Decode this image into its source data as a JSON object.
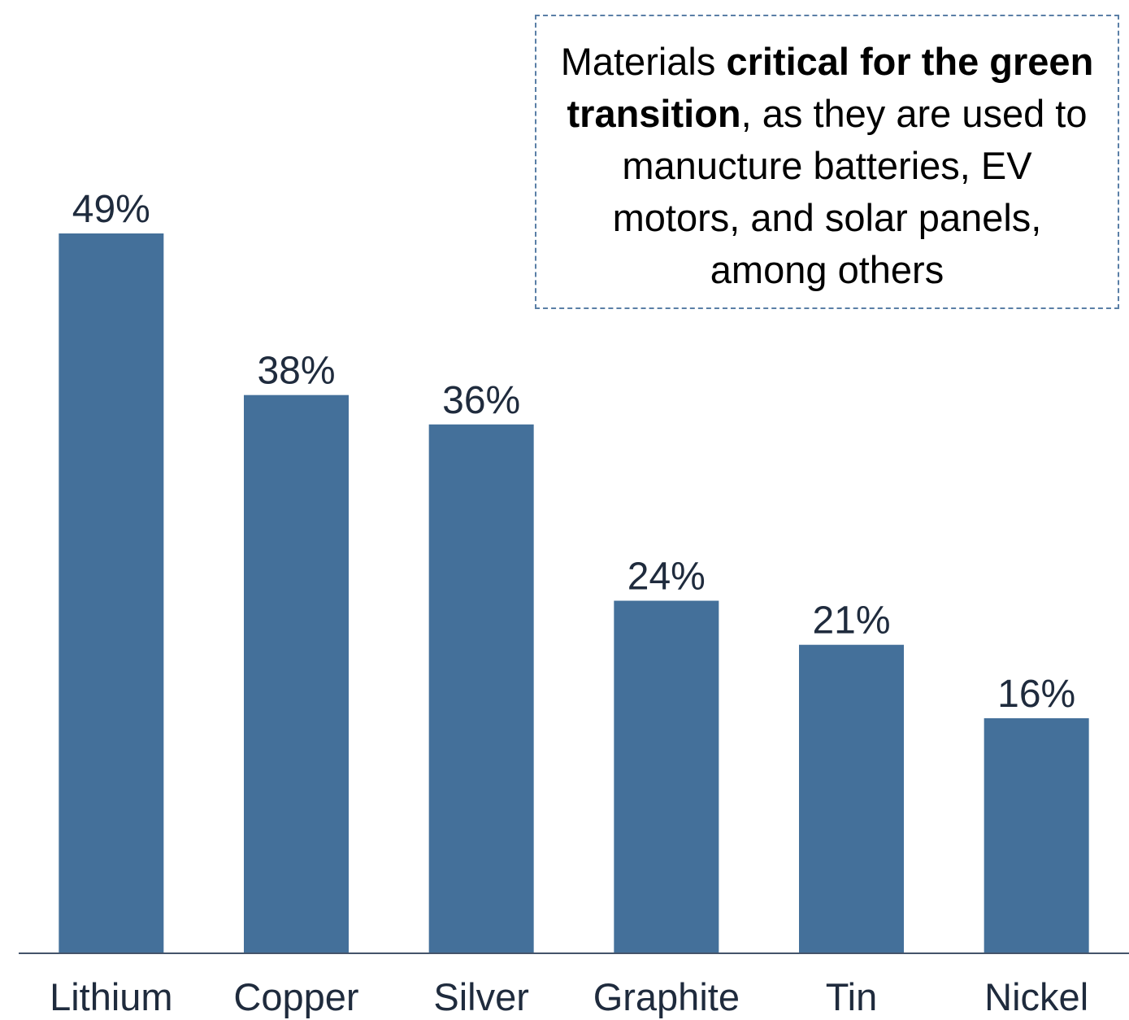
{
  "chart_data": {
    "type": "bar",
    "categories": [
      "Lithium",
      "Copper",
      "Silver",
      "Graphite",
      "Tin",
      "Nickel"
    ],
    "values": [
      49,
      38,
      36,
      24,
      21,
      16
    ],
    "value_labels": [
      "49%",
      "38%",
      "36%",
      "24%",
      "21%",
      "16%"
    ],
    "color": "#44709a",
    "annotation": [
      {
        "text": "Materials ",
        "bold": false
      },
      {
        "text": "critical for the green transition",
        "bold": true
      },
      {
        "text": ", as they are used to manucture batteries, EV motors, and solar panels, among others",
        "bold": false
      }
    ]
  }
}
